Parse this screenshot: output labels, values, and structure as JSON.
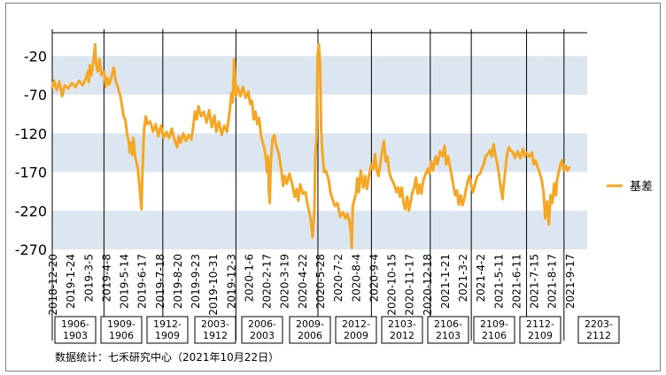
{
  "chart_data": {
    "type": "line",
    "ylim": [
      -270,
      10
    ],
    "yticks": [
      -20,
      -70,
      -120,
      -170,
      -220,
      -270
    ],
    "xtick_labels": [
      "2018-12-20",
      "2019-1-24",
      "2019-3-5",
      "2019-4-8",
      "2019-5-14",
      "2019-6-17",
      "2019-7-18",
      "2019-8-20",
      "2019-9-23",
      "2019-10-31",
      "2019-12-3",
      "2020-1-6",
      "2020-2-17",
      "2020-3-19",
      "2020-4-22",
      "2020-5-28",
      "2020-7-2",
      "2020-8-4",
      "2020-9-4",
      "2020-10-15",
      "2020-11-17",
      "2020-12-18",
      "2021-1-21",
      "2021-3-2",
      "2021-4-2",
      "2021-5-11",
      "2021-6-11",
      "2021-7-15",
      "2021-8-17",
      "2021-9-17"
    ],
    "x_index_max": 30,
    "contract_labels": [
      "1906-\n1903",
      "1909-\n1906",
      "1912-\n1909",
      "2003-\n1912",
      "2006-\n2003",
      "2009-\n2006",
      "2012-\n2009",
      "2103-\n2012",
      "2106-\n2103",
      "2109-\n2106",
      "2112-\n2109",
      "2203-\n2112"
    ],
    "series": [
      {
        "name": "基差",
        "color": "#F5A623",
        "points": [
          [
            0,
            -60
          ],
          [
            0.1,
            -52
          ],
          [
            0.25,
            -64
          ],
          [
            0.4,
            -53
          ],
          [
            0.55,
            -72
          ],
          [
            0.7,
            -58
          ],
          [
            0.9,
            -62
          ],
          [
            1.1,
            -55
          ],
          [
            1.3,
            -60
          ],
          [
            1.5,
            -52
          ],
          [
            1.7,
            -58
          ],
          [
            1.9,
            -48
          ],
          [
            2.0,
            -40
          ],
          [
            2.05,
            -54
          ],
          [
            2.1,
            -32
          ],
          [
            2.2,
            -45
          ],
          [
            2.3,
            -28
          ],
          [
            2.4,
            -5
          ],
          [
            2.45,
            -28
          ],
          [
            2.55,
            -40
          ],
          [
            2.65,
            -24
          ],
          [
            2.75,
            -45
          ],
          [
            2.9,
            -40
          ],
          [
            3.0,
            -60
          ],
          [
            3.1,
            -48
          ],
          [
            3.2,
            -57
          ],
          [
            3.35,
            -45
          ],
          [
            3.45,
            -35
          ],
          [
            3.55,
            -52
          ],
          [
            3.7,
            -62
          ],
          [
            3.85,
            -75
          ],
          [
            4.0,
            -98
          ],
          [
            4.1,
            -102
          ],
          [
            4.2,
            -122
          ],
          [
            4.3,
            -132
          ],
          [
            4.35,
            -145
          ],
          [
            4.4,
            -132
          ],
          [
            4.5,
            -148
          ],
          [
            4.55,
            -126
          ],
          [
            4.65,
            -150
          ],
          [
            4.8,
            -165
          ],
          [
            4.9,
            -190
          ],
          [
            5.0,
            -218
          ],
          [
            5.05,
            -175
          ],
          [
            5.15,
            -115
          ],
          [
            5.25,
            -98
          ],
          [
            5.35,
            -108
          ],
          [
            5.5,
            -105
          ],
          [
            5.65,
            -118
          ],
          [
            5.8,
            -108
          ],
          [
            5.95,
            -124
          ],
          [
            6.1,
            -110
          ],
          [
            6.25,
            -126
          ],
          [
            6.4,
            -118
          ],
          [
            6.55,
            -126
          ],
          [
            6.7,
            -114
          ],
          [
            6.85,
            -128
          ],
          [
            7.0,
            -138
          ],
          [
            7.1,
            -124
          ],
          [
            7.2,
            -132
          ],
          [
            7.35,
            -120
          ],
          [
            7.5,
            -130
          ],
          [
            7.65,
            -122
          ],
          [
            7.8,
            -128
          ],
          [
            7.9,
            -112
          ],
          [
            8.0,
            -92
          ],
          [
            8.1,
            -102
          ],
          [
            8.2,
            -85
          ],
          [
            8.35,
            -98
          ],
          [
            8.5,
            -92
          ],
          [
            8.65,
            -106
          ],
          [
            8.8,
            -90
          ],
          [
            8.95,
            -112
          ],
          [
            9.1,
            -97
          ],
          [
            9.2,
            -118
          ],
          [
            9.35,
            -105
          ],
          [
            9.5,
            -122
          ],
          [
            9.65,
            -110
          ],
          [
            9.8,
            -118
          ],
          [
            9.95,
            -92
          ],
          [
            10.05,
            -68
          ],
          [
            10.12,
            -80
          ],
          [
            10.2,
            -24
          ],
          [
            10.3,
            -72
          ],
          [
            10.4,
            -60
          ],
          [
            10.55,
            -72
          ],
          [
            10.7,
            -60
          ],
          [
            10.85,
            -74
          ],
          [
            11.0,
            -66
          ],
          [
            11.1,
            -82
          ],
          [
            11.2,
            -78
          ],
          [
            11.3,
            -102
          ],
          [
            11.4,
            -92
          ],
          [
            11.5,
            -108
          ],
          [
            11.6,
            -100
          ],
          [
            11.7,
            -122
          ],
          [
            11.8,
            -132
          ],
          [
            11.9,
            -140
          ],
          [
            12.0,
            -155
          ],
          [
            12.05,
            -170
          ],
          [
            12.1,
            -150
          ],
          [
            12.15,
            -195
          ],
          [
            12.2,
            -210
          ],
          [
            12.25,
            -160
          ],
          [
            12.35,
            -128
          ],
          [
            12.45,
            -122
          ],
          [
            12.55,
            -135
          ],
          [
            12.7,
            -146
          ],
          [
            12.85,
            -168
          ],
          [
            12.95,
            -188
          ],
          [
            13.05,
            -175
          ],
          [
            13.15,
            -185
          ],
          [
            13.3,
            -172
          ],
          [
            13.45,
            -185
          ],
          [
            13.6,
            -202
          ],
          [
            13.7,
            -192
          ],
          [
            13.8,
            -207
          ],
          [
            13.9,
            -186
          ],
          [
            14.05,
            -198
          ],
          [
            14.2,
            -196
          ],
          [
            14.3,
            -210
          ],
          [
            14.4,
            -220
          ],
          [
            14.5,
            -232
          ],
          [
            14.6,
            -254
          ],
          [
            14.7,
            -220
          ],
          [
            14.75,
            -150
          ],
          [
            14.82,
            -128
          ],
          [
            14.88,
            -20
          ],
          [
            14.95,
            -5
          ],
          [
            15.02,
            -30
          ],
          [
            15.08,
            -115
          ],
          [
            15.15,
            -145
          ],
          [
            15.25,
            -170
          ],
          [
            15.35,
            -168
          ],
          [
            15.5,
            -180
          ],
          [
            15.6,
            -196
          ],
          [
            15.7,
            -204
          ],
          [
            15.85,
            -214
          ],
          [
            16.0,
            -210
          ],
          [
            16.15,
            -228
          ],
          [
            16.3,
            -222
          ],
          [
            16.45,
            -230
          ],
          [
            16.55,
            -224
          ],
          [
            16.65,
            -232
          ],
          [
            16.75,
            -248
          ],
          [
            16.8,
            -268
          ],
          [
            16.85,
            -215
          ],
          [
            16.95,
            -205
          ],
          [
            17.05,
            -196
          ],
          [
            17.1,
            -178
          ],
          [
            17.2,
            -196
          ],
          [
            17.3,
            -168
          ],
          [
            17.45,
            -190
          ],
          [
            17.55,
            -175
          ],
          [
            17.65,
            -192
          ],
          [
            17.75,
            -176
          ],
          [
            17.9,
            -160
          ],
          [
            18.0,
            -166
          ],
          [
            18.1,
            -147
          ],
          [
            18.2,
            -168
          ],
          [
            18.3,
            -175
          ],
          [
            18.4,
            -158
          ],
          [
            18.5,
            -143
          ],
          [
            18.6,
            -130
          ],
          [
            18.7,
            -156
          ],
          [
            18.8,
            -150
          ],
          [
            18.9,
            -170
          ],
          [
            19.0,
            -178
          ],
          [
            19.1,
            -182
          ],
          [
            19.2,
            -188
          ],
          [
            19.3,
            -196
          ],
          [
            19.4,
            -190
          ],
          [
            19.5,
            -202
          ],
          [
            19.6,
            -190
          ],
          [
            19.7,
            -210
          ],
          [
            19.8,
            -218
          ],
          [
            19.9,
            -202
          ],
          [
            20.0,
            -220
          ],
          [
            20.1,
            -208
          ],
          [
            20.2,
            -196
          ],
          [
            20.3,
            -190
          ],
          [
            20.4,
            -177
          ],
          [
            20.5,
            -198
          ],
          [
            20.6,
            -186
          ],
          [
            20.7,
            -198
          ],
          [
            20.8,
            -182
          ],
          [
            20.9,
            -175
          ],
          [
            21.05,
            -166
          ],
          [
            21.15,
            -172
          ],
          [
            21.25,
            -156
          ],
          [
            21.35,
            -168
          ],
          [
            21.5,
            -150
          ],
          [
            21.6,
            -160
          ],
          [
            21.75,
            -143
          ],
          [
            21.9,
            -150
          ],
          [
            22.0,
            -136
          ],
          [
            22.1,
            -160
          ],
          [
            22.2,
            -150
          ],
          [
            22.3,
            -162
          ],
          [
            22.4,
            -175
          ],
          [
            22.5,
            -188
          ],
          [
            22.6,
            -200
          ],
          [
            22.7,
            -194
          ],
          [
            22.8,
            -212
          ],
          [
            22.9,
            -200
          ],
          [
            23.0,
            -213
          ],
          [
            23.1,
            -205
          ],
          [
            23.2,
            -193
          ],
          [
            23.3,
            -182
          ],
          [
            23.4,
            -175
          ],
          [
            23.5,
            -188
          ],
          [
            23.6,
            -196
          ],
          [
            23.75,
            -182
          ],
          [
            23.85,
            -175
          ],
          [
            24.0,
            -172
          ],
          [
            24.1,
            -165
          ],
          [
            24.2,
            -160
          ],
          [
            24.3,
            -150
          ],
          [
            24.45,
            -146
          ],
          [
            24.55,
            -142
          ],
          [
            24.65,
            -150
          ],
          [
            24.75,
            -134
          ],
          [
            24.85,
            -148
          ],
          [
            24.95,
            -158
          ],
          [
            25.05,
            -172
          ],
          [
            25.15,
            -190
          ],
          [
            25.25,
            -205
          ],
          [
            25.3,
            -190
          ],
          [
            25.4,
            -170
          ],
          [
            25.5,
            -148
          ],
          [
            25.6,
            -138
          ],
          [
            25.7,
            -142
          ],
          [
            25.85,
            -145
          ],
          [
            25.95,
            -152
          ],
          [
            26.1,
            -143
          ],
          [
            26.25,
            -152
          ],
          [
            26.4,
            -140
          ],
          [
            26.5,
            -150
          ],
          [
            26.6,
            -145
          ],
          [
            26.75,
            -150
          ],
          [
            26.9,
            -145
          ],
          [
            27.0,
            -160
          ],
          [
            27.1,
            -155
          ],
          [
            27.2,
            -162
          ],
          [
            27.35,
            -172
          ],
          [
            27.45,
            -180
          ],
          [
            27.55,
            -196
          ],
          [
            27.65,
            -230
          ],
          [
            27.75,
            -208
          ],
          [
            27.85,
            -238
          ],
          [
            27.95,
            -200
          ],
          [
            28.05,
            -210
          ],
          [
            28.15,
            -185
          ],
          [
            28.25,
            -200
          ],
          [
            28.3,
            -182
          ],
          [
            28.4,
            -170
          ],
          [
            28.5,
            -160
          ],
          [
            28.6,
            -155
          ],
          [
            28.7,
            -168
          ],
          [
            28.8,
            -162
          ],
          [
            28.9,
            -168
          ],
          [
            29.0,
            -164
          ]
        ]
      }
    ],
    "legend_position": "right",
    "note": "数据统计：七禾研究中心（2021年10月22日）"
  }
}
